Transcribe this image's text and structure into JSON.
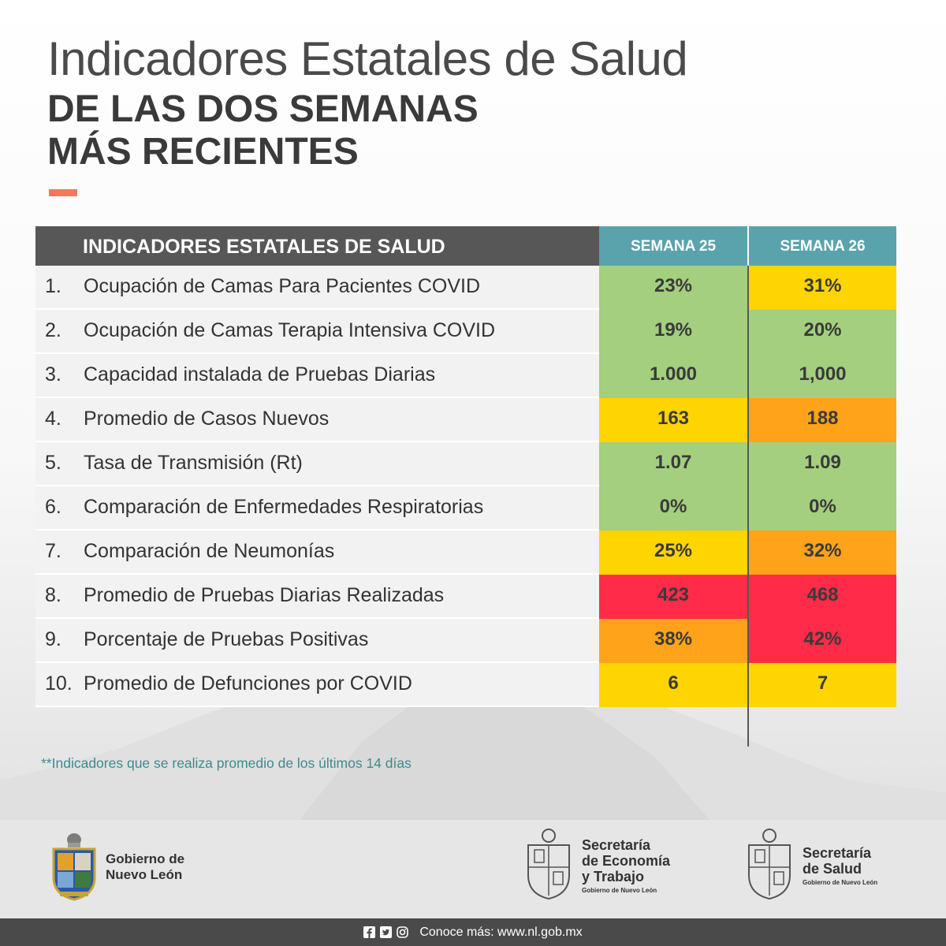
{
  "header": {
    "title_line1": "Indicadores Estatales de Salud",
    "title_line2": "DE LAS DOS SEMANAS",
    "title_line3": "MÁS RECIENTES"
  },
  "table": {
    "header": "INDICADORES ESTATALES DE SALUD",
    "week1": "SEMANA 25",
    "week2": "SEMANA 26",
    "rows": [
      {
        "num": "1.",
        "label": "Ocupación de Camas Para Pacientes COVID",
        "w1": "23%",
        "w1_color": "#a3cf7e",
        "w2": "31%",
        "w2_color": "#ffd500"
      },
      {
        "num": "2.",
        "label": "Ocupación de Camas Terapia Intensiva COVID",
        "w1": "19%",
        "w1_color": "#a3cf7e",
        "w2": "20%",
        "w2_color": "#a3cf7e"
      },
      {
        "num": "3.",
        "label": "Capacidad instalada de Pruebas Diarias",
        "w1": "1.000",
        "w1_color": "#a3cf7e",
        "w2": "1,000",
        "w2_color": "#a3cf7e"
      },
      {
        "num": "4.",
        "label": "Promedio de Casos Nuevos",
        "w1": "163",
        "w1_color": "#ffd500",
        "w2": "188",
        "w2_color": "#ffa31a"
      },
      {
        "num": "5.",
        "label": "Tasa de Transmisión (Rt)",
        "w1": "1.07",
        "w1_color": "#a3cf7e",
        "w2": "1.09",
        "w2_color": "#a3cf7e"
      },
      {
        "num": "6.",
        "label": "Comparación de Enfermedades Respiratorias",
        "w1": "0%",
        "w1_color": "#a3cf7e",
        "w2": "0%",
        "w2_color": "#a3cf7e"
      },
      {
        "num": "7.",
        "label": "Comparación de Neumonías",
        "w1": "25%",
        "w1_color": "#ffd500",
        "w2": "32%",
        "w2_color": "#ffa31a"
      },
      {
        "num": "8.",
        "label": "Promedio de Pruebas Diarias Realizadas",
        "w1": "423",
        "w1_color": "#ff2b48",
        "w2": "468",
        "w2_color": "#ff2b48"
      },
      {
        "num": "9.",
        "label": "Porcentaje de Pruebas Positivas",
        "w1": "38%",
        "w1_color": "#ffa31a",
        "w2": "42%",
        "w2_color": "#ff2b48"
      },
      {
        "num": "10.",
        "label": "Promedio de Defunciones por COVID",
        "w1": "6",
        "w1_color": "#ffd500",
        "w2": "7",
        "w2_color": "#ffd500"
      }
    ]
  },
  "footnote": "**Indicadores que se realiza promedio de los últimos 14 días",
  "logos": {
    "gobierno": {
      "line1": "Gobierno de",
      "line2": "Nuevo León"
    },
    "economia": {
      "line1": "Secretaría",
      "line2": "de Economía",
      "line3": "y Trabajo",
      "sub": "Gobierno de Nuevo León"
    },
    "salud": {
      "line1": "Secretaría",
      "line2": "de Salud",
      "sub": "Gobierno de Nuevo León"
    }
  },
  "footer": {
    "text": "Conoce más: www.nl.gob.mx",
    "social_icons": [
      "facebook-icon",
      "twitter-icon",
      "instagram-icon"
    ]
  },
  "colors": {
    "accent": "#f0795c",
    "header_gray": "#575757",
    "header_teal": "#5aa3ad",
    "green": "#a3cf7e",
    "yellow": "#ffd500",
    "orange": "#ffa31a",
    "red": "#ff2b48"
  }
}
